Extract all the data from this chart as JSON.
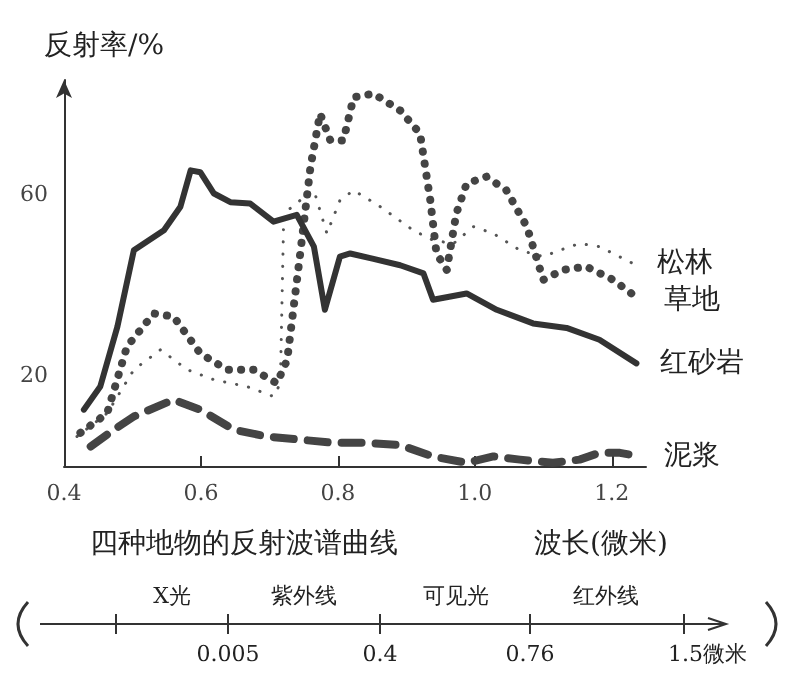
{
  "chart_data": {
    "type": "line",
    "title": "四种地物的反射波谱曲线",
    "xlabel": "波长(微米)",
    "ylabel": "反射率/%",
    "xlim": [
      0.4,
      1.25
    ],
    "xticks": [
      {
        "value": 0.4,
        "label": "0.4"
      },
      {
        "value": 0.6,
        "label": "0.6"
      },
      {
        "value": 0.8,
        "label": "0.8"
      },
      {
        "value": 1,
        "label": "1.0"
      },
      {
        "value": 1.2,
        "label": "1.2"
      }
    ],
    "ylim": [
      0,
      85
    ],
    "yticks": [
      20,
      60
    ],
    "grid": false,
    "legend": false,
    "marker": "none",
    "series": [
      {
        "name": "松林",
        "color": "#555555",
        "line_style": "dotted",
        "x": [
          0.419,
          0.463,
          0.502,
          0.541,
          0.58,
          0.619,
          0.667,
          0.706,
          0.716,
          0.721,
          0.745,
          0.765,
          0.784,
          0.803,
          0.823,
          0.862,
          0.91,
          0.939,
          0.969,
          0.998,
          1.027,
          1.066,
          1.1,
          1.124,
          1.153,
          1.182,
          1.231
        ],
        "values": [
          6.5,
          11.6,
          21.2,
          25.6,
          21.2,
          19,
          17.5,
          15.3,
          18.2,
          55.6,
          58.5,
          60.7,
          51.2,
          58.5,
          60.7,
          57.1,
          51.9,
          49.7,
          49,
          52.7,
          51.2,
          47.5,
          46.1,
          47.5,
          49,
          48.3,
          44.6
        ]
      },
      {
        "name": "草地",
        "color": "#444444",
        "line_style": "dotted",
        "x": [
          0.424,
          0.463,
          0.492,
          0.531,
          0.56,
          0.599,
          0.638,
          0.677,
          0.711,
          0.726,
          0.745,
          0.76,
          0.774,
          0.789,
          0.808,
          0.823,
          0.852,
          0.891,
          0.92,
          0.935,
          0.944,
          0.959,
          0.973,
          0.988,
          1.017,
          1.046,
          1.076,
          1.1,
          1.129,
          1.163,
          1.202,
          1.241
        ],
        "values": [
          7.3,
          11.6,
          26.3,
          33.6,
          32.9,
          24.8,
          21.2,
          21.2,
          18.2,
          23.4,
          46.8,
          65.9,
          77.6,
          71.7,
          71.7,
          81.2,
          82,
          78.3,
          73.2,
          58.5,
          46.8,
          43.2,
          55.6,
          62.2,
          63.7,
          60.7,
          52.7,
          41,
          43.2,
          43.9,
          41,
          36.6
        ]
      },
      {
        "name": "红砂岩",
        "color": "#333333",
        "line_style": "solid",
        "x": [
          0.429,
          0.453,
          0.478,
          0.502,
          0.546,
          0.57,
          0.585,
          0.599,
          0.619,
          0.643,
          0.672,
          0.706,
          0.74,
          0.765,
          0.781,
          0.803,
          0.818,
          0.852,
          0.891,
          0.925,
          0.939,
          0.988,
          1.032,
          1.085,
          1.134,
          1.182,
          1.236
        ],
        "values": [
          12.4,
          17.5,
          30.7,
          47.5,
          51.9,
          57.1,
          65.1,
          64.7,
          60,
          58.1,
          57.8,
          53.8,
          55.3,
          48.3,
          34.4,
          46.1,
          46.8,
          45.6,
          44.2,
          42.4,
          36.6,
          38,
          34.4,
          31.4,
          30.4,
          27.8,
          22.6
        ]
      },
      {
        "name": "泥浆",
        "color": "#444444",
        "line_style": "dashed",
        "x": [
          0.439,
          0.473,
          0.502,
          0.56,
          0.599,
          0.648,
          0.696,
          0.745,
          0.794,
          0.842,
          0.891,
          0.939,
          0.988,
          1.027,
          1.066,
          1.114,
          1.153,
          1.182,
          1.212,
          1.241
        ],
        "values": [
          4.3,
          8,
          10.9,
          14.6,
          12.4,
          8,
          6.5,
          5.8,
          5.1,
          5.1,
          4.6,
          2.1,
          0.7,
          2.1,
          1.4,
          0.7,
          1.4,
          2.9,
          2.9,
          2.1
        ]
      }
    ],
    "annotations": [
      "X光",
      "紫外线",
      "可见光",
      "红外线",
      "0.005",
      "0.4",
      "0.76",
      "1.5微米"
    ]
  }
}
